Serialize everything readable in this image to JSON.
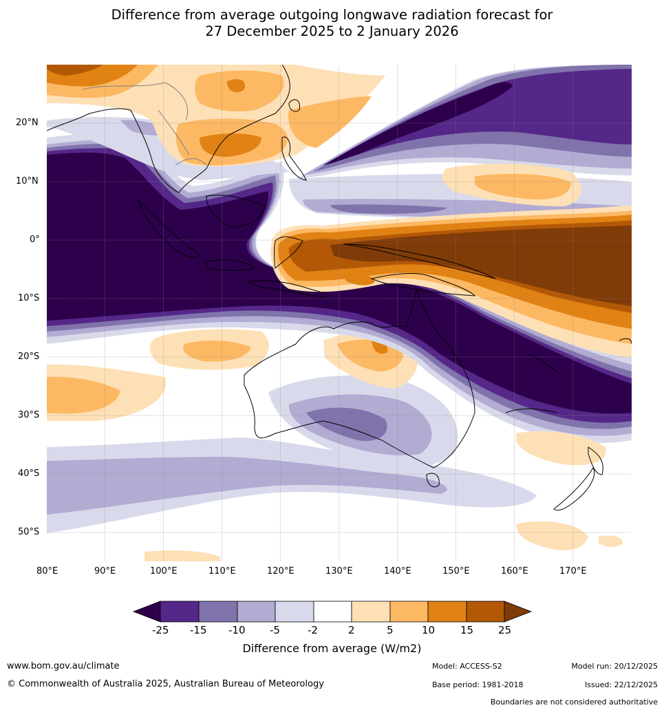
{
  "title_line1": "Difference from average outgoing longwave radiation forecast for",
  "title_line2": "27 December 2025 to 2 January 2026",
  "map": {
    "lon_labels": [
      "80°E",
      "90°E",
      "100°E",
      "110°E",
      "120°E",
      "130°E",
      "140°E",
      "150°E",
      "160°E",
      "170°E"
    ],
    "lat_labels": [
      "20°N",
      "10°N",
      "0°",
      "10°S",
      "20°S",
      "30°S",
      "40°S",
      "50°S"
    ],
    "colors": {
      "neg25": "#2d004b",
      "neg15": "#542788",
      "neg10": "#8073ac",
      "neg5": "#b2abd2",
      "neg2": "#d8daeb",
      "zero": "#ffffff",
      "pos2": "#fee0b6",
      "pos5": "#fdb863",
      "pos10": "#e08214",
      "pos15": "#b35806",
      "pos25": "#7f3b08"
    }
  },
  "colorbar": {
    "ticks": [
      "-25",
      "-15",
      "-10",
      "-5",
      "-2",
      "2",
      "5",
      "10",
      "15",
      "25"
    ],
    "label": "Difference from average (W/m2)"
  },
  "footer": {
    "website": "www.bom.gov.au/climate",
    "copyright": "© Commonwealth of Australia 2025, Australian Bureau of Meteorology",
    "model": "Model: ACCESS-S2",
    "base_period": "Base period: 1981-2018",
    "model_run": "Model run: 20/12/2025",
    "issued": "Issued: 22/12/2025",
    "disclaimer": "Boundaries are not considered authoritative"
  }
}
